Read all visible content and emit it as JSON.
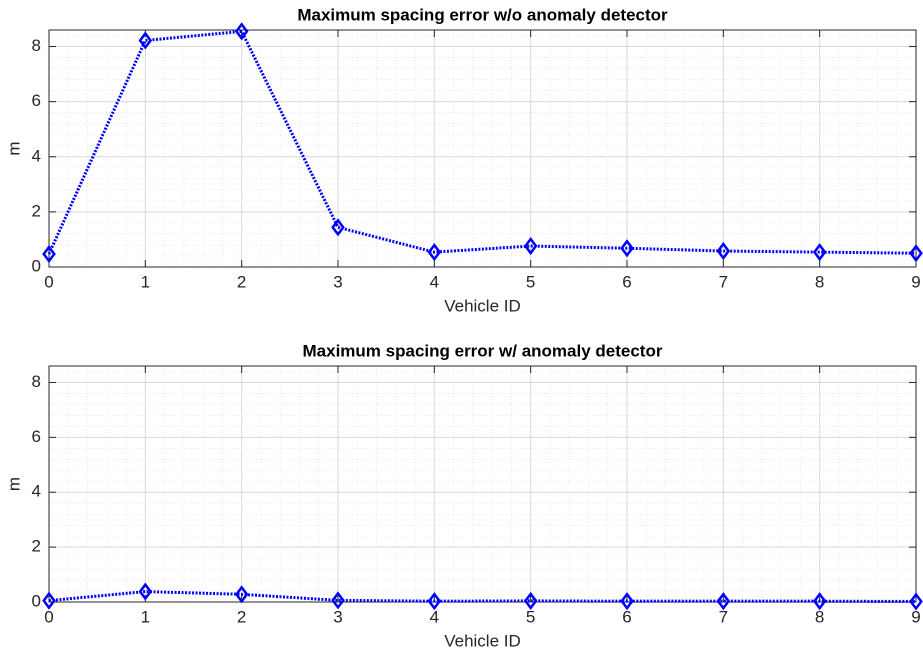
{
  "chart_data": [
    {
      "type": "line",
      "title": "Maximum spacing error w/o anomaly detector",
      "x_label": "Vehicle ID",
      "y_label": "m",
      "x": [
        0,
        1,
        2,
        3,
        4,
        5,
        6,
        7,
        8,
        9
      ],
      "values": [
        0.47,
        8.22,
        8.55,
        1.44,
        0.54,
        0.76,
        0.68,
        0.58,
        0.54,
        0.5
      ],
      "color": "#0000ff",
      "marker": "diamond",
      "line_style": "dotted",
      "xlim": [
        0,
        9
      ],
      "xticks": [
        0,
        1,
        2,
        3,
        4,
        5,
        6,
        7,
        8,
        9
      ],
      "ylim": [
        0,
        8.6
      ],
      "yticks": [
        0,
        2,
        4,
        6,
        8
      ],
      "grid": true,
      "minor_grid": true
    },
    {
      "type": "line",
      "title": "Maximum spacing error w/ anomaly detector",
      "x_label": "Vehicle ID",
      "y_label": "m",
      "x": [
        0,
        1,
        2,
        3,
        4,
        5,
        6,
        7,
        8,
        9
      ],
      "values": [
        0.05,
        0.38,
        0.28,
        0.06,
        0.03,
        0.04,
        0.03,
        0.03,
        0.03,
        0.02
      ],
      "color": "#0000ff",
      "marker": "diamond",
      "line_style": "dotted",
      "xlim": [
        0,
        9
      ],
      "xticks": [
        0,
        1,
        2,
        3,
        4,
        5,
        6,
        7,
        8,
        9
      ],
      "ylim": [
        0,
        8.6
      ],
      "yticks": [
        0,
        2,
        4,
        6,
        8
      ],
      "grid": true,
      "minor_grid": true
    }
  ]
}
